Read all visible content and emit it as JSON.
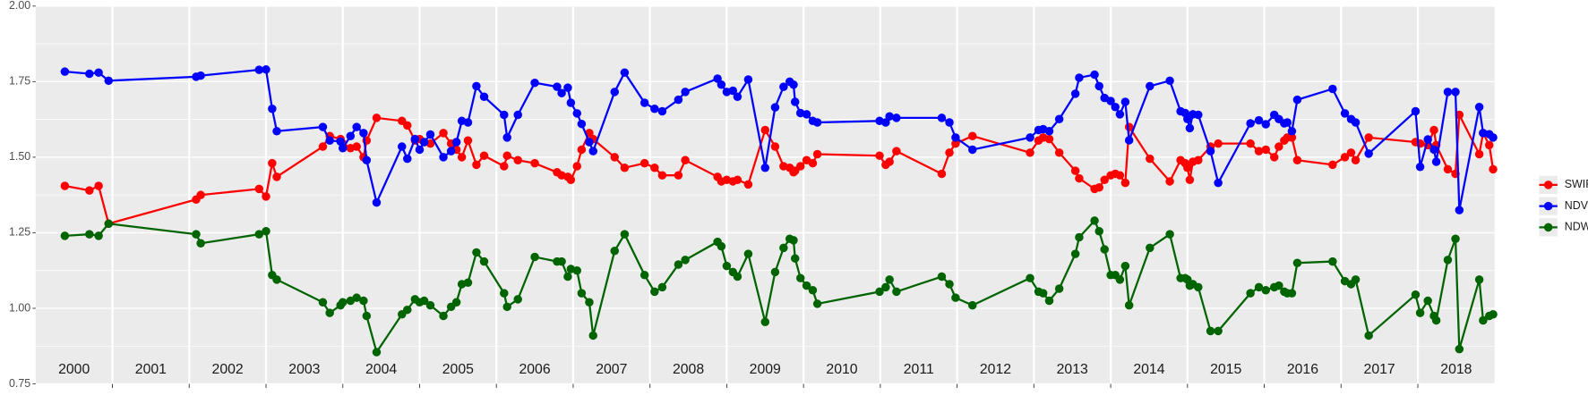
{
  "chart_data": {
    "type": "line",
    "x": [
      2000.38,
      2000.7,
      2000.82,
      2000.95,
      2002.09,
      2002.15,
      2002.91,
      2003.0,
      2003.08,
      2003.14,
      2003.74,
      2003.83,
      2003.97,
      2004.0,
      2004.1,
      2004.18,
      2004.27,
      2004.31,
      2004.44,
      2004.77,
      2004.84,
      2004.94,
      2005.0,
      2005.06,
      2005.14,
      2005.31,
      2005.41,
      2005.48,
      2005.55,
      2005.63,
      2005.74,
      2005.84,
      2006.1,
      2006.14,
      2006.28,
      2006.5,
      2006.79,
      2006.85,
      2006.93,
      2006.97,
      2007.05,
      2007.11,
      2007.21,
      2007.26,
      2007.54,
      2007.67,
      2007.93,
      2008.06,
      2008.16,
      2008.37,
      2008.46,
      2008.88,
      2008.93,
      2009.0,
      2009.08,
      2009.14,
      2009.28,
      2009.5,
      2009.63,
      2009.74,
      2009.82,
      2009.87,
      2009.89,
      2009.96,
      2010.04,
      2010.12,
      2010.18,
      2010.99,
      2011.07,
      2011.12,
      2011.21,
      2011.8,
      2011.9,
      2011.98,
      2012.2,
      2012.95,
      2013.06,
      2013.12,
      2013.2,
      2013.33,
      2013.54,
      2013.59,
      2013.79,
      2013.85,
      2013.92,
      2014.0,
      2014.06,
      2014.12,
      2014.19,
      2014.24,
      2014.51,
      2014.77,
      2014.91,
      2014.97,
      2015.0,
      2015.03,
      2015.07,
      2015.14,
      2015.3,
      2015.4,
      2015.82,
      2015.93,
      2016.02,
      2016.13,
      2016.19,
      2016.26,
      2016.3,
      2016.36,
      2016.43,
      2016.89,
      2017.05,
      2017.13,
      2017.19,
      2017.36,
      2017.97,
      2018.03,
      2018.13,
      2018.21,
      2018.24,
      2018.39,
      2018.49,
      2018.54,
      2018.8,
      2018.85,
      2018.93,
      2018.98
    ],
    "series": [
      {
        "name": "SWIR",
        "color": "#ff0000",
        "values": [
          1.405,
          1.39,
          1.405,
          1.28,
          1.36,
          1.375,
          1.395,
          1.37,
          1.48,
          1.435,
          1.535,
          1.57,
          1.56,
          1.545,
          1.53,
          1.535,
          1.5,
          1.555,
          1.63,
          1.62,
          1.605,
          1.555,
          1.56,
          1.55,
          1.545,
          1.58,
          1.545,
          1.525,
          1.5,
          1.555,
          1.475,
          1.505,
          1.47,
          1.505,
          1.49,
          1.48,
          1.45,
          1.44,
          1.435,
          1.425,
          1.47,
          1.525,
          1.58,
          1.56,
          1.5,
          1.465,
          1.48,
          1.465,
          1.44,
          1.44,
          1.49,
          1.435,
          1.42,
          1.425,
          1.42,
          1.425,
          1.41,
          1.59,
          1.535,
          1.47,
          1.465,
          1.45,
          1.455,
          1.47,
          1.49,
          1.48,
          1.51,
          1.505,
          1.475,
          1.485,
          1.52,
          1.445,
          1.515,
          1.545,
          1.57,
          1.515,
          1.555,
          1.565,
          1.56,
          1.515,
          1.455,
          1.43,
          1.395,
          1.4,
          1.425,
          1.44,
          1.445,
          1.44,
          1.415,
          1.6,
          1.495,
          1.42,
          1.49,
          1.48,
          1.465,
          1.425,
          1.485,
          1.49,
          1.535,
          1.545,
          1.545,
          1.52,
          1.525,
          1.5,
          1.535,
          1.555,
          1.565,
          1.565,
          1.49,
          1.475,
          1.5,
          1.515,
          1.49,
          1.565,
          1.55,
          1.545,
          1.54,
          1.59,
          1.54,
          1.46,
          1.445,
          1.64,
          1.51,
          1.58,
          1.54,
          1.46
        ]
      },
      {
        "name": "NDVI",
        "color": "#0000ff",
        "values": [
          1.783,
          1.776,
          1.78,
          1.753,
          1.766,
          1.77,
          1.789,
          1.79,
          1.66,
          1.586,
          1.6,
          1.555,
          1.552,
          1.53,
          1.57,
          1.6,
          1.58,
          1.49,
          1.35,
          1.535,
          1.495,
          1.56,
          1.525,
          1.55,
          1.575,
          1.5,
          1.52,
          1.55,
          1.62,
          1.615,
          1.735,
          1.7,
          1.64,
          1.565,
          1.64,
          1.746,
          1.733,
          1.712,
          1.73,
          1.68,
          1.645,
          1.61,
          1.55,
          1.52,
          1.716,
          1.78,
          1.68,
          1.66,
          1.652,
          1.69,
          1.716,
          1.76,
          1.74,
          1.716,
          1.72,
          1.7,
          1.757,
          1.465,
          1.665,
          1.733,
          1.75,
          1.74,
          1.683,
          1.646,
          1.642,
          1.62,
          1.615,
          1.62,
          1.615,
          1.635,
          1.63,
          1.63,
          1.615,
          1.565,
          1.525,
          1.565,
          1.59,
          1.593,
          1.586,
          1.626,
          1.71,
          1.763,
          1.773,
          1.735,
          1.696,
          1.686,
          1.666,
          1.642,
          1.683,
          1.556,
          1.735,
          1.753,
          1.652,
          1.646,
          1.626,
          1.596,
          1.642,
          1.64,
          1.52,
          1.415,
          1.612,
          1.622,
          1.609,
          1.64,
          1.626,
          1.612,
          1.615,
          1.586,
          1.69,
          1.726,
          1.645,
          1.626,
          1.615,
          1.512,
          1.652,
          1.468,
          1.559,
          1.525,
          1.485,
          1.716,
          1.716,
          1.325,
          1.666,
          1.58,
          1.576,
          1.565
        ]
      },
      {
        "name": "NDWI",
        "color": "#006400",
        "values": [
          1.24,
          1.245,
          1.24,
          1.28,
          1.245,
          1.215,
          1.245,
          1.255,
          1.11,
          1.095,
          1.02,
          0.985,
          1.01,
          1.02,
          1.025,
          1.035,
          1.025,
          0.975,
          0.855,
          0.98,
          0.995,
          1.03,
          1.02,
          1.025,
          1.01,
          0.975,
          1.005,
          1.02,
          1.08,
          1.085,
          1.185,
          1.155,
          1.05,
          1.005,
          1.03,
          1.17,
          1.155,
          1.155,
          1.105,
          1.13,
          1.125,
          1.05,
          1.02,
          0.91,
          1.19,
          1.245,
          1.11,
          1.055,
          1.07,
          1.145,
          1.16,
          1.22,
          1.205,
          1.14,
          1.12,
          1.105,
          1.18,
          0.955,
          1.12,
          1.2,
          1.23,
          1.225,
          1.165,
          1.1,
          1.075,
          1.06,
          1.015,
          1.055,
          1.07,
          1.095,
          1.055,
          1.105,
          1.08,
          1.035,
          1.01,
          1.1,
          1.055,
          1.05,
          1.025,
          1.065,
          1.18,
          1.235,
          1.29,
          1.255,
          1.195,
          1.11,
          1.11,
          1.095,
          1.14,
          1.01,
          1.2,
          1.245,
          1.1,
          1.1,
          1.095,
          1.075,
          1.08,
          1.07,
          0.925,
          0.925,
          1.05,
          1.07,
          1.06,
          1.07,
          1.075,
          1.055,
          1.05,
          1.05,
          1.15,
          1.155,
          1.09,
          1.08,
          1.095,
          0.91,
          1.045,
          0.985,
          1.025,
          0.975,
          0.96,
          1.16,
          1.23,
          0.865,
          1.095,
          0.96,
          0.975,
          0.98
        ]
      }
    ],
    "xlim": [
      2000,
      2019
    ],
    "xticks": [
      2001,
      2002,
      2003,
      2004,
      2005,
      2006,
      2007,
      2008,
      2009,
      2010,
      2011,
      2012,
      2013,
      2014,
      2015,
      2016,
      2017,
      2018
    ],
    "year_labels": [
      "2000",
      "2001",
      "2002",
      "2003",
      "2004",
      "2005",
      "2006",
      "2007",
      "2008",
      "2009",
      "2010",
      "2011",
      "2012",
      "2013",
      "2014",
      "2015",
      "2016",
      "2017",
      "2018"
    ],
    "ylim": [
      0.75,
      2.0
    ],
    "yticks": [
      {
        "value": 0.75,
        "label": "0.75"
      },
      {
        "value": 1.0,
        "label": "1.00"
      },
      {
        "value": 1.25,
        "label": "1.25"
      },
      {
        "value": 1.5,
        "label": "1.50"
      },
      {
        "value": 1.75,
        "label": "1.75"
      },
      {
        "value": 2.0,
        "label": "2.00"
      }
    ],
    "grid": true,
    "legend": "right"
  }
}
